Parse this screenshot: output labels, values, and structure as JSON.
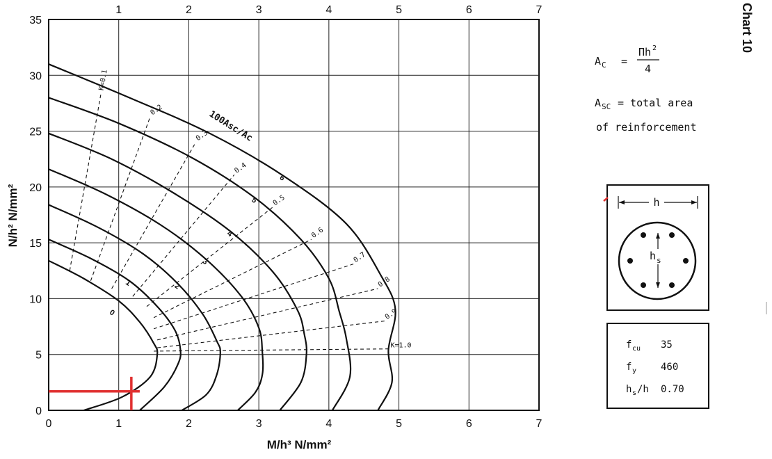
{
  "page": {
    "chart_number": "Chart 10"
  },
  "notes": {
    "ac_symbol": "A",
    "ac_sub": "C",
    "ac_eq": "=",
    "ac_numerator": "Πh",
    "ac_numerator_sup": "2",
    "ac_denominator": "4",
    "asc_symbol": "A",
    "asc_sub": "SC",
    "asc_text_1": "= total area",
    "asc_text_2": "of reinforcement"
  },
  "section": {
    "h_label": "h",
    "hs_label": "h",
    "hs_sub": "s"
  },
  "properties": {
    "rows": [
      {
        "symbol": "f",
        "sub": "cu",
        "value": "35"
      },
      {
        "symbol": "f",
        "sub": "y",
        "value": "460"
      },
      {
        "symbol": "h",
        "sub": "s",
        "symbol_suffix": "/h",
        "value": "0.70"
      }
    ]
  },
  "chart_data": {
    "type": "line",
    "xlabel": "M/h³   N/mm²",
    "ylabel": "N/h²   N/mm²",
    "xlim": [
      0,
      7
    ],
    "ylim": [
      0,
      35
    ],
    "x_ticks_bottom": [
      "0",
      "1",
      "2",
      "3",
      "4",
      "5",
      "6",
      "7"
    ],
    "x_ticks_top": [
      "1",
      "2",
      "3",
      "4",
      "5",
      "6",
      "7"
    ],
    "y_ticks": [
      "0",
      "5",
      "10",
      "15",
      "20",
      "25",
      "30",
      "35"
    ],
    "grid": true,
    "family_label": "100Asc/Ac",
    "series": [
      {
        "name": "0",
        "points": [
          [
            0,
            13.4
          ],
          [
            0.5,
            11.8
          ],
          [
            1.0,
            9.8
          ],
          [
            1.3,
            7.9
          ],
          [
            1.5,
            6.0
          ],
          [
            1.55,
            5.0
          ],
          [
            1.45,
            3.0
          ],
          [
            1.05,
            1.2
          ],
          [
            0.5,
            0
          ]
        ]
      },
      {
        "name": "1",
        "points": [
          [
            0,
            15.3
          ],
          [
            0.6,
            13.6
          ],
          [
            1.15,
            11.6
          ],
          [
            1.55,
            9.3
          ],
          [
            1.8,
            7.2
          ],
          [
            1.88,
            5.5
          ],
          [
            1.85,
            4.2
          ],
          [
            1.65,
            2.1
          ],
          [
            1.3,
            0
          ]
        ]
      },
      {
        "name": "2",
        "points": [
          [
            0,
            18.4
          ],
          [
            0.7,
            16.4
          ],
          [
            1.35,
            14.0
          ],
          [
            1.85,
            11.3
          ],
          [
            2.2,
            8.6
          ],
          [
            2.4,
            6.2
          ],
          [
            2.45,
            5.2
          ],
          [
            2.4,
            3.2
          ],
          [
            2.25,
            1.4
          ],
          [
            1.9,
            0
          ]
        ]
      },
      {
        "name": "3",
        "points": [
          [
            0,
            21.6
          ],
          [
            0.8,
            19.4
          ],
          [
            1.6,
            16.6
          ],
          [
            2.25,
            13.5
          ],
          [
            2.75,
            10.2
          ],
          [
            3.0,
            7.4
          ],
          [
            3.05,
            5.2
          ],
          [
            3.05,
            3.2
          ],
          [
            2.95,
            1.6
          ],
          [
            2.7,
            0
          ]
        ]
      },
      {
        "name": "4",
        "points": [
          [
            0,
            24.8
          ],
          [
            0.9,
            22.5
          ],
          [
            1.8,
            19.4
          ],
          [
            2.6,
            16.0
          ],
          [
            3.2,
            12.4
          ],
          [
            3.55,
            9.0
          ],
          [
            3.65,
            6.8
          ],
          [
            3.68,
            5.0
          ],
          [
            3.6,
            2.5
          ],
          [
            3.3,
            0
          ]
        ]
      },
      {
        "name": "5",
        "points": [
          [
            0,
            28.0
          ],
          [
            1.0,
            25.7
          ],
          [
            2.05,
            22.6
          ],
          [
            2.95,
            19.0
          ],
          [
            3.6,
            15.3
          ],
          [
            4.0,
            11.8
          ],
          [
            4.15,
            8.8
          ],
          [
            4.25,
            6.4
          ],
          [
            4.3,
            3.0
          ],
          [
            4.05,
            0
          ]
        ]
      },
      {
        "name": "6",
        "points": [
          [
            0,
            31.0
          ],
          [
            1.15,
            28.0
          ],
          [
            2.3,
            24.8
          ],
          [
            3.35,
            21.0
          ],
          [
            4.25,
            16.7
          ],
          [
            4.75,
            12.0
          ],
          [
            4.95,
            9.0
          ],
          [
            4.85,
            5.4
          ],
          [
            4.9,
            2.5
          ],
          [
            4.7,
            0
          ]
        ]
      }
    ],
    "k_labels": [
      "K=0.1",
      "0.2",
      "0.3",
      "0.4",
      "0.5",
      "0.6",
      "0.7",
      "0.8",
      "0.9",
      "K=1.0"
    ],
    "k_lines": [
      {
        "label": "K=0.1",
        "points": [
          [
            0.3,
            12.5
          ],
          [
            0.75,
            28.5
          ]
        ]
      },
      {
        "label": "0.2",
        "points": [
          [
            0.6,
            11.6
          ],
          [
            1.45,
            26.3
          ]
        ]
      },
      {
        "label": "0.3",
        "points": [
          [
            0.9,
            10.9
          ],
          [
            2.1,
            24.0
          ]
        ]
      },
      {
        "label": "0.4",
        "points": [
          [
            1.2,
            10.2
          ],
          [
            2.65,
            21.1
          ]
        ]
      },
      {
        "label": "0.5",
        "points": [
          [
            1.4,
            9.3
          ],
          [
            3.2,
            18.2
          ]
        ]
      },
      {
        "label": "0.6",
        "points": [
          [
            1.5,
            8.3
          ],
          [
            3.75,
            15.3
          ]
        ]
      },
      {
        "label": "0.7",
        "points": [
          [
            1.5,
            7.3
          ],
          [
            4.35,
            13.1
          ]
        ]
      },
      {
        "label": "0.8",
        "points": [
          [
            1.55,
            6.3
          ],
          [
            4.7,
            10.9
          ]
        ]
      },
      {
        "label": "0.9",
        "points": [
          [
            1.55,
            5.6
          ],
          [
            4.8,
            8.0
          ]
        ]
      },
      {
        "label": "K=1.0",
        "points": [
          [
            1.5,
            5.3
          ],
          [
            4.85,
            5.5
          ]
        ]
      }
    ],
    "annotations": [
      {
        "type": "hline",
        "y": 1.7,
        "x_from": 0,
        "x_to": 1.3,
        "color": "#e03030"
      },
      {
        "type": "vline",
        "x": 1.18,
        "y_from": 0,
        "y_to": 3.0,
        "color": "#e03030"
      }
    ]
  },
  "colors": {
    "ink": "#111111",
    "annotation_red": "#e03030",
    "grid": "#222222"
  }
}
